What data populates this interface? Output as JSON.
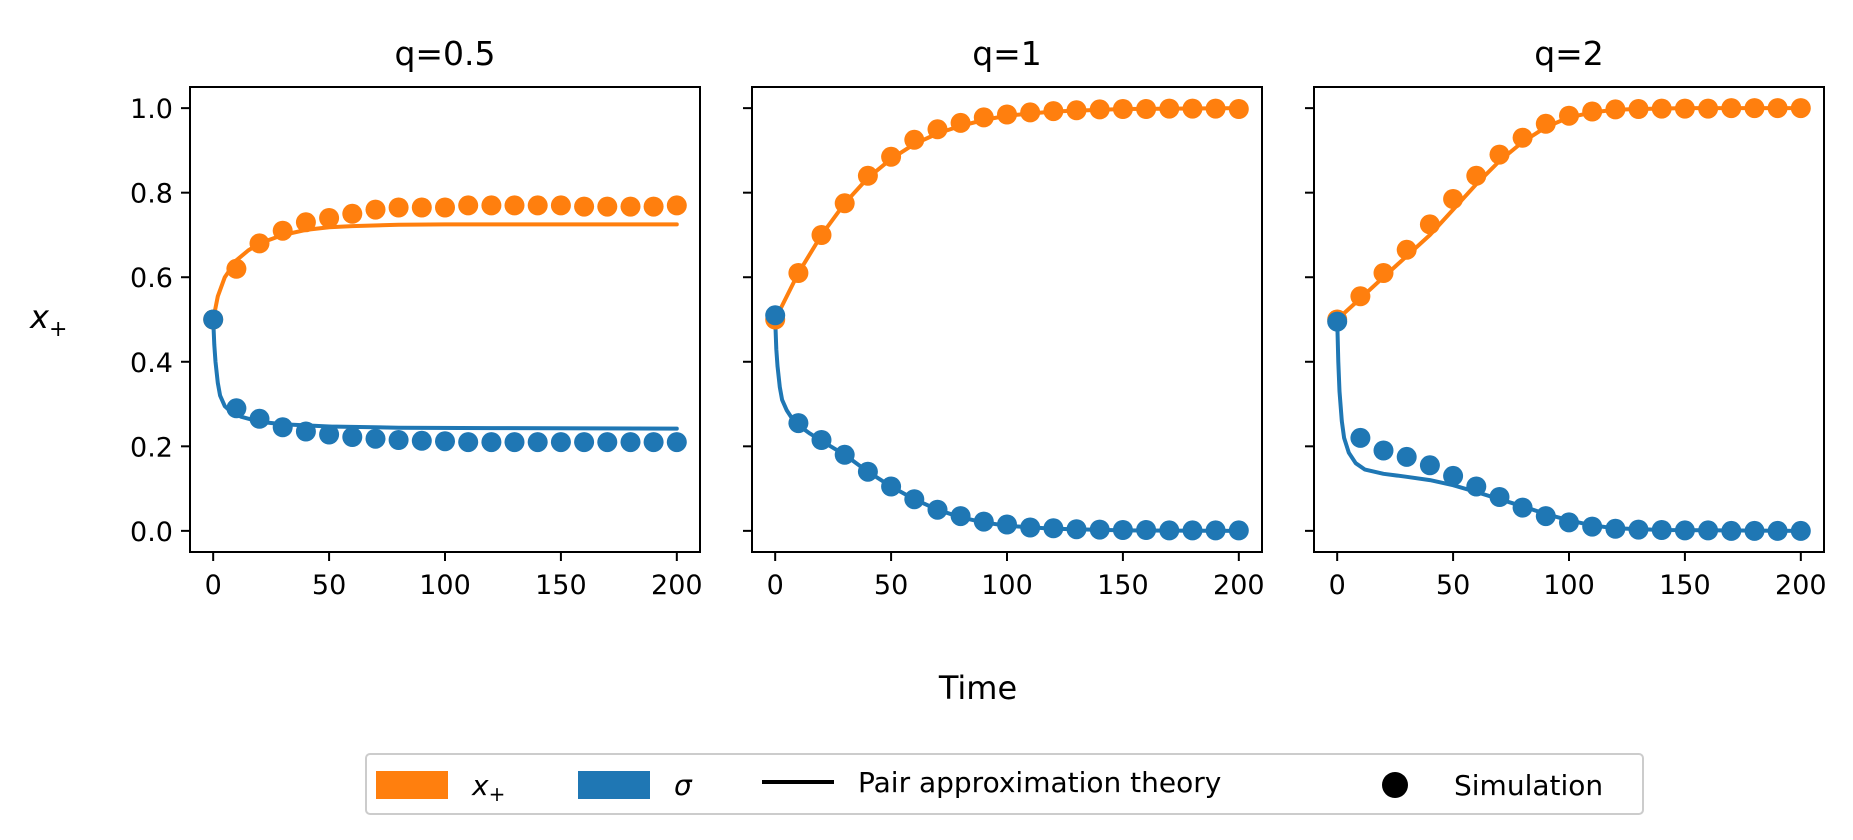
{
  "figure": {
    "ylabel": "x",
    "ylabel_sub": "+",
    "xlabel": "Time",
    "legend": [
      {
        "kind": "patch",
        "label_main": "x",
        "label_sub": "+",
        "color": "#ff7f0e"
      },
      {
        "kind": "patch",
        "label_main": "σ",
        "label_sub": "",
        "color": "#1f77b4"
      },
      {
        "kind": "line",
        "label_main": "Pair approximation theory",
        "label_sub": "",
        "color": "#000000"
      },
      {
        "kind": "marker",
        "label_main": "Simulation",
        "label_sub": "",
        "color": "#000000"
      }
    ]
  },
  "chart_data": [
    {
      "type": "line",
      "title": "q=0.5",
      "xlim": [
        -10,
        210
      ],
      "ylim": [
        -0.05,
        1.05
      ],
      "xticks": [
        0,
        50,
        100,
        150,
        200
      ],
      "yticks": [
        0.0,
        0.2,
        0.4,
        0.6,
        0.8,
        1.0
      ],
      "ytick_labels": [
        "0.0",
        "0.2",
        "0.4",
        "0.6",
        "0.8",
        "1.0"
      ],
      "series": [
        {
          "name": "x+ theory",
          "color": "#ff7f0e",
          "style": "line",
          "x": [
            0,
            2,
            5,
            10,
            15,
            20,
            30,
            40,
            50,
            60,
            80,
            100,
            150,
            200
          ],
          "y": [
            0.5,
            0.555,
            0.6,
            0.64,
            0.663,
            0.68,
            0.7,
            0.712,
            0.718,
            0.721,
            0.724,
            0.725,
            0.725,
            0.725
          ]
        },
        {
          "name": "sigma theory",
          "color": "#1f77b4",
          "style": "line",
          "x": [
            0,
            0.5,
            1,
            2,
            3,
            5,
            8,
            12,
            20,
            30,
            50,
            80,
            120,
            200
          ],
          "y": [
            0.5,
            0.44,
            0.4,
            0.35,
            0.32,
            0.295,
            0.28,
            0.27,
            0.258,
            0.252,
            0.247,
            0.244,
            0.243,
            0.242
          ]
        },
        {
          "name": "x+ simulation",
          "color": "#ff7f0e",
          "style": "marker",
          "x": [
            0,
            10,
            20,
            30,
            40,
            50,
            60,
            70,
            80,
            90,
            100,
            110,
            120,
            130,
            140,
            150,
            160,
            170,
            180,
            190,
            200
          ],
          "y": [
            0.5,
            0.62,
            0.68,
            0.71,
            0.73,
            0.74,
            0.75,
            0.76,
            0.765,
            0.765,
            0.765,
            0.77,
            0.77,
            0.77,
            0.77,
            0.77,
            0.767,
            0.767,
            0.767,
            0.767,
            0.77
          ]
        },
        {
          "name": "sigma simulation",
          "color": "#1f77b4",
          "style": "marker",
          "x": [
            0,
            10,
            20,
            30,
            40,
            50,
            60,
            70,
            80,
            90,
            100,
            110,
            120,
            130,
            140,
            150,
            160,
            170,
            180,
            190,
            200
          ],
          "y": [
            0.5,
            0.29,
            0.265,
            0.245,
            0.235,
            0.228,
            0.222,
            0.218,
            0.215,
            0.213,
            0.212,
            0.21,
            0.21,
            0.21,
            0.21,
            0.21,
            0.21,
            0.21,
            0.21,
            0.21,
            0.21
          ]
        }
      ]
    },
    {
      "type": "line",
      "title": "q=1",
      "xlim": [
        -10,
        210
      ],
      "ylim": [
        -0.05,
        1.05
      ],
      "xticks": [
        0,
        50,
        100,
        150,
        200
      ],
      "yticks": [
        0.0,
        0.2,
        0.4,
        0.6,
        0.8,
        1.0
      ],
      "series": [
        {
          "name": "x+ theory",
          "color": "#ff7f0e",
          "style": "line",
          "x": [
            0,
            10,
            20,
            30,
            40,
            50,
            60,
            70,
            80,
            90,
            100,
            120,
            150,
            200
          ],
          "y": [
            0.5,
            0.61,
            0.7,
            0.775,
            0.835,
            0.88,
            0.915,
            0.94,
            0.958,
            0.972,
            0.982,
            0.992,
            0.998,
            1.0
          ]
        },
        {
          "name": "sigma theory",
          "color": "#1f77b4",
          "style": "line",
          "x": [
            0,
            0.5,
            1,
            2,
            3,
            5,
            8,
            10,
            15,
            20,
            30,
            40,
            50,
            60,
            70,
            80,
            90,
            100,
            120,
            150,
            200
          ],
          "y": [
            0.5,
            0.43,
            0.39,
            0.34,
            0.31,
            0.285,
            0.26,
            0.25,
            0.23,
            0.213,
            0.18,
            0.14,
            0.105,
            0.075,
            0.05,
            0.032,
            0.02,
            0.012,
            0.005,
            0.001,
            0.0
          ]
        },
        {
          "name": "x+ simulation",
          "color": "#ff7f0e",
          "style": "marker",
          "x": [
            0,
            10,
            20,
            30,
            40,
            50,
            60,
            70,
            80,
            90,
            100,
            110,
            120,
            130,
            140,
            150,
            160,
            170,
            180,
            190,
            200
          ],
          "y": [
            0.5,
            0.61,
            0.7,
            0.775,
            0.84,
            0.885,
            0.925,
            0.95,
            0.965,
            0.978,
            0.985,
            0.99,
            0.993,
            0.995,
            0.997,
            0.998,
            0.998,
            0.999,
            0.999,
            0.999,
            0.998
          ]
        },
        {
          "name": "sigma simulation",
          "color": "#1f77b4",
          "style": "marker",
          "x": [
            0,
            10,
            20,
            30,
            40,
            50,
            60,
            70,
            80,
            90,
            100,
            110,
            120,
            130,
            140,
            150,
            160,
            170,
            180,
            190,
            200
          ],
          "y": [
            0.51,
            0.255,
            0.215,
            0.18,
            0.14,
            0.105,
            0.075,
            0.05,
            0.035,
            0.022,
            0.015,
            0.008,
            0.006,
            0.004,
            0.003,
            0.002,
            0.002,
            0.001,
            0.001,
            0.001,
            0.001
          ]
        }
      ]
    },
    {
      "type": "line",
      "title": "q=2",
      "xlim": [
        -10,
        210
      ],
      "ylim": [
        -0.05,
        1.05
      ],
      "xticks": [
        0,
        50,
        100,
        150,
        200
      ],
      "yticks": [
        0.0,
        0.2,
        0.4,
        0.6,
        0.8,
        1.0
      ],
      "series": [
        {
          "name": "x+ theory",
          "color": "#ff7f0e",
          "style": "line",
          "x": [
            0,
            10,
            20,
            30,
            40,
            50,
            60,
            70,
            80,
            90,
            100,
            110,
            120,
            130,
            150,
            200
          ],
          "y": [
            0.5,
            0.55,
            0.6,
            0.65,
            0.7,
            0.76,
            0.82,
            0.875,
            0.92,
            0.955,
            0.978,
            0.99,
            0.996,
            0.998,
            1.0,
            1.0
          ]
        },
        {
          "name": "sigma theory",
          "color": "#1f77b4",
          "style": "line",
          "x": [
            0,
            0.5,
            1,
            2,
            3,
            5,
            8,
            12,
            20,
            30,
            40,
            50,
            60,
            70,
            80,
            90,
            100,
            110,
            120,
            140,
            200
          ],
          "y": [
            0.5,
            0.4,
            0.33,
            0.26,
            0.22,
            0.185,
            0.16,
            0.145,
            0.135,
            0.128,
            0.12,
            0.108,
            0.092,
            0.075,
            0.058,
            0.04,
            0.025,
            0.013,
            0.006,
            0.002,
            0.0
          ]
        },
        {
          "name": "x+ simulation",
          "color": "#ff7f0e",
          "style": "marker",
          "x": [
            0,
            10,
            20,
            30,
            40,
            50,
            60,
            70,
            80,
            90,
            100,
            110,
            120,
            130,
            140,
            150,
            160,
            170,
            180,
            190,
            200
          ],
          "y": [
            0.5,
            0.555,
            0.61,
            0.665,
            0.725,
            0.785,
            0.84,
            0.89,
            0.93,
            0.963,
            0.982,
            0.992,
            0.997,
            0.998,
            0.999,
            0.999,
            0.999,
            1.0,
            1.0,
            1.0,
            1.0
          ]
        },
        {
          "name": "sigma simulation",
          "color": "#1f77b4",
          "style": "marker",
          "x": [
            0,
            10,
            20,
            30,
            40,
            50,
            60,
            70,
            80,
            90,
            100,
            110,
            120,
            130,
            140,
            150,
            160,
            170,
            180,
            190,
            200
          ],
          "y": [
            0.495,
            0.22,
            0.19,
            0.175,
            0.155,
            0.13,
            0.105,
            0.08,
            0.055,
            0.035,
            0.02,
            0.01,
            0.005,
            0.003,
            0.002,
            0.001,
            0.001,
            0.0,
            0.0,
            0.0,
            0.0
          ]
        }
      ]
    }
  ]
}
